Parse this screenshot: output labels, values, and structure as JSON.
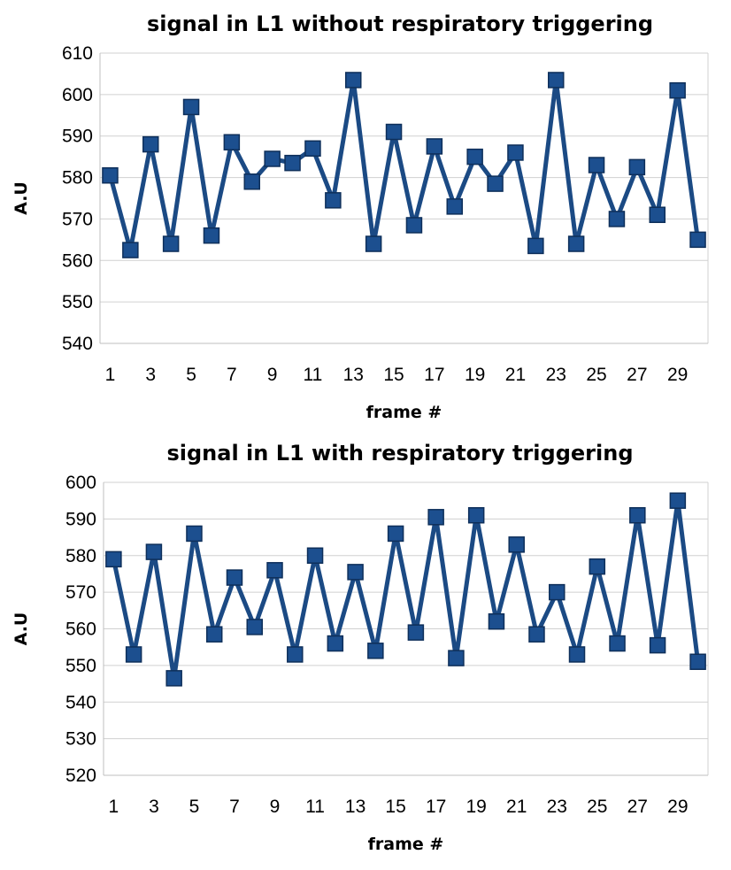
{
  "chart_data": [
    {
      "type": "line",
      "title": "signal in L1 without respiratory triggering",
      "xlabel": "frame #",
      "ylabel": "A.U",
      "ylim": [
        540,
        610
      ],
      "ytick_step": 10,
      "x": [
        1,
        2,
        3,
        4,
        5,
        6,
        7,
        8,
        9,
        10,
        11,
        12,
        13,
        14,
        15,
        16,
        17,
        18,
        19,
        20,
        21,
        22,
        23,
        24,
        25,
        26,
        27,
        28,
        29,
        30
      ],
      "xtick_labels": [
        "1",
        "3",
        "5",
        "7",
        "9",
        "11",
        "13",
        "15",
        "17",
        "19",
        "21",
        "23",
        "25",
        "27",
        "29"
      ],
      "series": [
        {
          "name": "signal",
          "color": "#1b4a84",
          "values": [
            580.5,
            562.5,
            588,
            564,
            597,
            566,
            588.5,
            579,
            584.5,
            583.5,
            587,
            574.5,
            603.5,
            564,
            591,
            568.5,
            587.5,
            573,
            585,
            578.5,
            586,
            563.5,
            603.5,
            564,
            583,
            570,
            582.5,
            571,
            601,
            565
          ]
        }
      ],
      "grid": true
    },
    {
      "type": "line",
      "title": "signal in L1 with respiratory triggering",
      "xlabel": "frame #",
      "ylabel": "A.U",
      "ylim": [
        520,
        600
      ],
      "ytick_step": 10,
      "x": [
        1,
        2,
        3,
        4,
        5,
        6,
        7,
        8,
        9,
        10,
        11,
        12,
        13,
        14,
        15,
        16,
        17,
        18,
        19,
        20,
        21,
        22,
        23,
        24,
        25,
        26,
        27,
        28,
        29,
        30
      ],
      "xtick_labels": [
        "1",
        "3",
        "5",
        "7",
        "9",
        "11",
        "13",
        "15",
        "17",
        "19",
        "21",
        "23",
        "25",
        "27",
        "29"
      ],
      "series": [
        {
          "name": "signal",
          "color": "#1b4a84",
          "values": [
            579,
            553,
            581,
            546.5,
            586,
            558.5,
            574,
            560.5,
            576,
            553,
            580,
            556,
            575.5,
            554,
            586,
            559,
            590.5,
            552,
            591,
            562,
            583,
            558.5,
            570,
            553,
            577,
            556,
            591,
            555.5,
            595,
            551
          ]
        }
      ],
      "grid": true
    }
  ]
}
